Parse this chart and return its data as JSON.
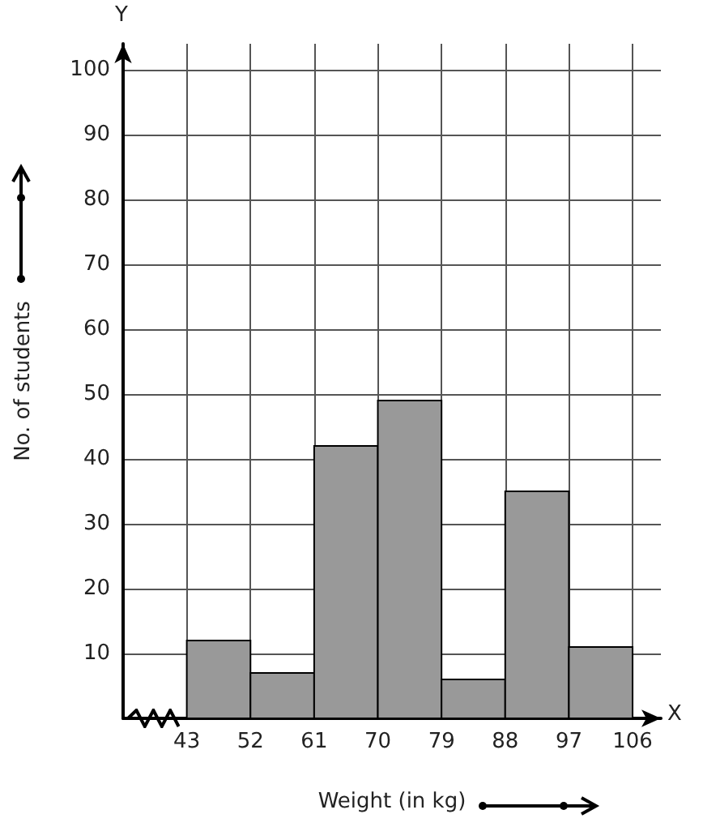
{
  "chart_data": {
    "type": "histogram",
    "bins": [
      43,
      52,
      61,
      70,
      79,
      88,
      97,
      106
    ],
    "values": [
      12,
      7,
      42,
      49,
      6,
      35,
      11
    ],
    "color": "#999999",
    "xlabel": "Weight (in kg)",
    "ylabel": "No. of students",
    "annotations": [
      "Y",
      "X"
    ],
    "xlim": [
      34,
      110
    ],
    "xticks": [
      43,
      52,
      61,
      70,
      79,
      88,
      97,
      106
    ],
    "ylim": [
      0,
      104
    ],
    "yticks": [
      10,
      20,
      30,
      40,
      50,
      60,
      70,
      80,
      90,
      100
    ],
    "grid": true
  }
}
